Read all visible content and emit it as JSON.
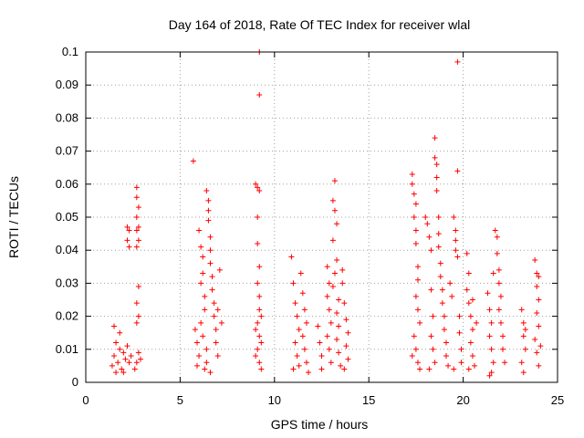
{
  "chart_data": {
    "type": "scatter",
    "title": "Day 164 of 2018, Rate Of TEC Index for receiver wlal",
    "xlabel": "GPS time / hours",
    "ylabel": "ROTI / TECUs",
    "xlim": [
      0,
      25
    ],
    "ylim": [
      0,
      0.1
    ],
    "xticks": [
      0,
      5,
      10,
      15,
      20,
      25
    ],
    "xtick_labels": [
      "0",
      "5",
      "10",
      "15",
      "20",
      "25"
    ],
    "yticks": [
      0,
      0.01,
      0.02,
      0.03,
      0.04,
      0.05,
      0.06,
      0.07,
      0.08,
      0.09,
      0.1
    ],
    "ytick_labels": [
      "0",
      "0.01",
      "0.02",
      "0.03",
      "0.04",
      "0.05",
      "0.06",
      "0.07",
      "0.08",
      "0.09",
      "0.1"
    ],
    "grid": true,
    "marker": "+",
    "color": "#ff0000",
    "series": [
      {
        "name": "ROTI",
        "points": [
          [
            1.4,
            0.005
          ],
          [
            1.5,
            0.008
          ],
          [
            1.6,
            0.012
          ],
          [
            1.7,
            0.006
          ],
          [
            1.8,
            0.01
          ],
          [
            1.9,
            0.004
          ],
          [
            2.0,
            0.009
          ],
          [
            2.1,
            0.007
          ],
          [
            2.2,
            0.011
          ],
          [
            2.3,
            0.006
          ],
          [
            2.4,
            0.008
          ],
          [
            1.5,
            0.017
          ],
          [
            1.8,
            0.015
          ],
          [
            2.2,
            0.047
          ],
          [
            2.3,
            0.046
          ],
          [
            2.2,
            0.043
          ],
          [
            2.3,
            0.041
          ],
          [
            2.7,
            0.059
          ],
          [
            2.7,
            0.056
          ],
          [
            2.8,
            0.053
          ],
          [
            2.7,
            0.05
          ],
          [
            2.8,
            0.047
          ],
          [
            2.7,
            0.046
          ],
          [
            2.8,
            0.043
          ],
          [
            2.7,
            0.041
          ],
          [
            2.8,
            0.029
          ],
          [
            2.7,
            0.024
          ],
          [
            2.8,
            0.02
          ],
          [
            2.7,
            0.018
          ],
          [
            2.8,
            0.009
          ],
          [
            2.7,
            0.006
          ],
          [
            2.6,
            0.004
          ],
          [
            2.9,
            0.007
          ],
          [
            1.6,
            0.003
          ],
          [
            2.0,
            0.003
          ],
          [
            5.7,
            0.067
          ],
          [
            5.8,
            0.016
          ],
          [
            5.9,
            0.012
          ],
          [
            6.0,
            0.008
          ],
          [
            6.0,
            0.046
          ],
          [
            6.1,
            0.041
          ],
          [
            6.2,
            0.038
          ],
          [
            6.2,
            0.033
          ],
          [
            6.1,
            0.03
          ],
          [
            6.3,
            0.026
          ],
          [
            6.3,
            0.022
          ],
          [
            6.1,
            0.018
          ],
          [
            6.2,
            0.014
          ],
          [
            6.4,
            0.01
          ],
          [
            6.4,
            0.006
          ],
          [
            6.4,
            0.058
          ],
          [
            6.5,
            0.055
          ],
          [
            6.5,
            0.052
          ],
          [
            6.5,
            0.049
          ],
          [
            6.6,
            0.044
          ],
          [
            6.6,
            0.04
          ],
          [
            6.6,
            0.036
          ],
          [
            6.7,
            0.032
          ],
          [
            6.7,
            0.028
          ],
          [
            6.8,
            0.024
          ],
          [
            6.8,
            0.02
          ],
          [
            6.9,
            0.016
          ],
          [
            6.9,
            0.012
          ],
          [
            7.0,
            0.008
          ],
          [
            7.0,
            0.022
          ],
          [
            7.1,
            0.034
          ],
          [
            7.2,
            0.018
          ],
          [
            6.3,
            0.004
          ],
          [
            6.6,
            0.003
          ],
          [
            5.9,
            0.005
          ],
          [
            9.0,
            0.06
          ],
          [
            9.1,
            0.059
          ],
          [
            9.2,
            0.1
          ],
          [
            9.2,
            0.087
          ],
          [
            9.2,
            0.058
          ],
          [
            9.1,
            0.05
          ],
          [
            9.1,
            0.042
          ],
          [
            9.2,
            0.035
          ],
          [
            9.1,
            0.03
          ],
          [
            9.2,
            0.026
          ],
          [
            9.2,
            0.022
          ],
          [
            9.1,
            0.018
          ],
          [
            9.2,
            0.014
          ],
          [
            9.1,
            0.01
          ],
          [
            9.2,
            0.006
          ],
          [
            9.3,
            0.004
          ],
          [
            9.0,
            0.008
          ],
          [
            9.3,
            0.012
          ],
          [
            9.3,
            0.02
          ],
          [
            9.0,
            0.016
          ],
          [
            10.9,
            0.038
          ],
          [
            11.0,
            0.03
          ],
          [
            11.1,
            0.024
          ],
          [
            11.2,
            0.02
          ],
          [
            11.3,
            0.016
          ],
          [
            11.1,
            0.012
          ],
          [
            11.2,
            0.008
          ],
          [
            11.3,
            0.005
          ],
          [
            11.4,
            0.033
          ],
          [
            11.5,
            0.027
          ],
          [
            11.6,
            0.022
          ],
          [
            11.7,
            0.018
          ],
          [
            11.5,
            0.014
          ],
          [
            11.6,
            0.01
          ],
          [
            11.7,
            0.006
          ],
          [
            11.8,
            0.003
          ],
          [
            11.0,
            0.004
          ],
          [
            12.3,
            0.017
          ],
          [
            12.4,
            0.012
          ],
          [
            12.5,
            0.008
          ],
          [
            12.5,
            0.004
          ],
          [
            12.8,
            0.035
          ],
          [
            12.9,
            0.03
          ],
          [
            12.8,
            0.026
          ],
          [
            12.9,
            0.022
          ],
          [
            13.0,
            0.018
          ],
          [
            12.8,
            0.014
          ],
          [
            12.9,
            0.01
          ],
          [
            13.0,
            0.006
          ],
          [
            13.1,
            0.055
          ],
          [
            13.2,
            0.061
          ],
          [
            13.2,
            0.052
          ],
          [
            13.3,
            0.048
          ],
          [
            13.1,
            0.043
          ],
          [
            13.3,
            0.037
          ],
          [
            13.2,
            0.033
          ],
          [
            13.1,
            0.029
          ],
          [
            13.4,
            0.025
          ],
          [
            13.3,
            0.021
          ],
          [
            13.4,
            0.017
          ],
          [
            13.3,
            0.013
          ],
          [
            13.4,
            0.009
          ],
          [
            13.5,
            0.005
          ],
          [
            13.6,
            0.034
          ],
          [
            13.7,
            0.024
          ],
          [
            13.8,
            0.019
          ],
          [
            13.9,
            0.015
          ],
          [
            13.8,
            0.011
          ],
          [
            13.9,
            0.007
          ],
          [
            13.7,
            0.004
          ],
          [
            13.6,
            0.03
          ],
          [
            17.3,
            0.063
          ],
          [
            17.3,
            0.06
          ],
          [
            17.4,
            0.057
          ],
          [
            17.5,
            0.054
          ],
          [
            17.4,
            0.05
          ],
          [
            17.5,
            0.046
          ],
          [
            17.5,
            0.042
          ],
          [
            17.6,
            0.035
          ],
          [
            17.6,
            0.031
          ],
          [
            17.5,
            0.026
          ],
          [
            17.6,
            0.022
          ],
          [
            17.7,
            0.018
          ],
          [
            17.4,
            0.014
          ],
          [
            17.5,
            0.01
          ],
          [
            17.6,
            0.006
          ],
          [
            17.7,
            0.004
          ],
          [
            17.3,
            0.008
          ],
          [
            18.0,
            0.05
          ],
          [
            18.1,
            0.048
          ],
          [
            18.2,
            0.044
          ],
          [
            18.3,
            0.04
          ],
          [
            18.3,
            0.028
          ],
          [
            18.4,
            0.02
          ],
          [
            18.3,
            0.014
          ],
          [
            18.4,
            0.01
          ],
          [
            18.5,
            0.006
          ],
          [
            18.5,
            0.074
          ],
          [
            18.5,
            0.068
          ],
          [
            18.6,
            0.066
          ],
          [
            18.6,
            0.062
          ],
          [
            18.6,
            0.058
          ],
          [
            18.7,
            0.05
          ],
          [
            18.7,
            0.045
          ],
          [
            18.7,
            0.041
          ],
          [
            18.8,
            0.036
          ],
          [
            18.8,
            0.032
          ],
          [
            18.9,
            0.028
          ],
          [
            18.9,
            0.024
          ],
          [
            19.0,
            0.02
          ],
          [
            19.0,
            0.016
          ],
          [
            19.1,
            0.012
          ],
          [
            19.1,
            0.008
          ],
          [
            19.2,
            0.005
          ],
          [
            19.3,
            0.03
          ],
          [
            19.4,
            0.026
          ],
          [
            19.5,
            0.05
          ],
          [
            19.6,
            0.046
          ],
          [
            19.6,
            0.043
          ],
          [
            19.7,
            0.064
          ],
          [
            19.7,
            0.097
          ],
          [
            19.6,
            0.04
          ],
          [
            19.7,
            0.038
          ],
          [
            19.8,
            0.02
          ],
          [
            19.8,
            0.015
          ],
          [
            19.9,
            0.01
          ],
          [
            19.9,
            0.006
          ],
          [
            19.5,
            0.004
          ],
          [
            18.2,
            0.004
          ],
          [
            20.2,
            0.039
          ],
          [
            20.3,
            0.033
          ],
          [
            20.2,
            0.028
          ],
          [
            20.3,
            0.024
          ],
          [
            20.4,
            0.02
          ],
          [
            20.5,
            0.016
          ],
          [
            20.4,
            0.012
          ],
          [
            20.5,
            0.008
          ],
          [
            20.6,
            0.005
          ],
          [
            20.5,
            0.025
          ],
          [
            20.7,
            0.018
          ],
          [
            20.3,
            0.004
          ],
          [
            21.3,
            0.027
          ],
          [
            21.4,
            0.022
          ],
          [
            21.5,
            0.018
          ],
          [
            21.4,
            0.014
          ],
          [
            21.5,
            0.01
          ],
          [
            21.6,
            0.006
          ],
          [
            21.5,
            0.003
          ],
          [
            21.6,
            0.033
          ],
          [
            21.7,
            0.046
          ],
          [
            21.8,
            0.044
          ],
          [
            21.8,
            0.039
          ],
          [
            21.9,
            0.034
          ],
          [
            21.9,
            0.03
          ],
          [
            22.0,
            0.026
          ],
          [
            21.9,
            0.022
          ],
          [
            22.0,
            0.018
          ],
          [
            22.1,
            0.014
          ],
          [
            22.1,
            0.01
          ],
          [
            22.2,
            0.006
          ],
          [
            21.4,
            0.002
          ],
          [
            23.1,
            0.022
          ],
          [
            23.2,
            0.018
          ],
          [
            23.2,
            0.014
          ],
          [
            23.3,
            0.01
          ],
          [
            23.1,
            0.006
          ],
          [
            23.2,
            0.003
          ],
          [
            23.3,
            0.016
          ],
          [
            23.8,
            0.037
          ],
          [
            23.9,
            0.033
          ],
          [
            23.9,
            0.029
          ],
          [
            24.0,
            0.025
          ],
          [
            23.9,
            0.021
          ],
          [
            24.0,
            0.017
          ],
          [
            23.8,
            0.013
          ],
          [
            23.9,
            0.009
          ],
          [
            24.0,
            0.005
          ],
          [
            24.1,
            0.011
          ],
          [
            24.0,
            0.032
          ]
        ]
      }
    ]
  }
}
